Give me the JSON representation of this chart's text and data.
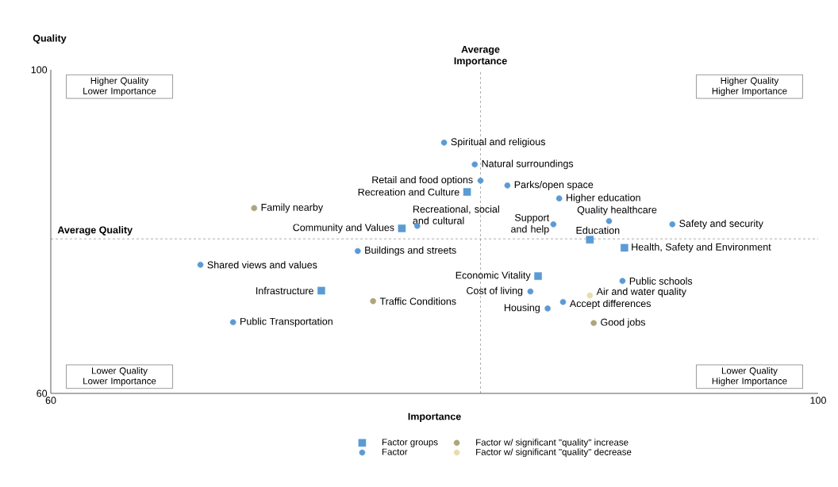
{
  "chart_data": {
    "type": "scatter",
    "xlabel": "Importance",
    "ylabel": "Quality",
    "xlim": [
      60,
      100
    ],
    "ylim": [
      60,
      100
    ],
    "xticks": [
      60,
      100
    ],
    "yticks": [
      60,
      100
    ],
    "legend": "bottom",
    "series": [
      {
        "name": "Factor groups",
        "color": "#5b9bd5",
        "marker": "square",
        "x": [
          81.7,
          78.3,
          88.1,
          89.9,
          85.4,
          74.1
        ],
        "values": [
          84.9,
          80.4,
          79.0,
          78.0,
          74.5,
          72.7
        ]
      },
      {
        "name": "Factor",
        "color": "#5b9bd5",
        "marker": "circle",
        "x": [
          80.5,
          82.1,
          82.4,
          83.8,
          86.5,
          79.1,
          86.2,
          89.1,
          92.4,
          76.0,
          67.8,
          89.8,
          85.0,
          86.7,
          85.9,
          69.5
        ],
        "values": [
          91.0,
          88.3,
          86.3,
          85.7,
          84.1,
          80.7,
          80.9,
          81.3,
          80.9,
          77.6,
          75.9,
          73.9,
          72.6,
          71.3,
          70.5,
          68.8
        ]
      },
      {
        "name": "Factor w/ significant \"quality\" increase",
        "color": "#aea57c",
        "marker": "circle",
        "x": [
          70.6,
          76.8,
          88.3
        ],
        "values": [
          82.9,
          71.4,
          68.7
        ]
      },
      {
        "name": "Factor w/ significant \"quality\" decrease",
        "color": "#e8dcae",
        "marker": "circle",
        "x": [
          88.1
        ],
        "values": [
          72.1
        ]
      }
    ],
    "ref_lines": [
      {
        "axis": "x",
        "value": 82.4,
        "label": "Average Importance",
        "color": "#333333",
        "line_style": "dashed"
      },
      {
        "axis": "y",
        "value": 79.1,
        "label": "Average Quality",
        "color": "#333333",
        "line_style": "dashed"
      }
    ],
    "annotations": [
      "Higher Quality Lower Importance",
      "Higher Quality Higher Importance",
      "Lower Quality Lower Importance",
      "Lower Quality Higher Importance",
      {
        "text": "Recreation and Culture",
        "x": 81.7,
        "y": 84.9
      },
      {
        "text": "Community and Values",
        "x": 78.3,
        "y": 80.4
      },
      {
        "text": "Education",
        "x": 88.1,
        "y": 79.0
      },
      {
        "text": "Health, Safety and Environment",
        "x": 89.9,
        "y": 78.0
      },
      {
        "text": "Economic Vitality",
        "x": 85.4,
        "y": 74.5
      },
      {
        "text": "Infrastructure",
        "x": 74.1,
        "y": 72.7
      },
      {
        "text": "Spiritual and religious",
        "x": 80.5,
        "y": 91.0
      },
      {
        "text": "Natural surroundings",
        "x": 82.1,
        "y": 88.3
      },
      {
        "text": "Retail and food options",
        "x": 82.4,
        "y": 86.3
      },
      {
        "text": "Parks/open space",
        "x": 83.8,
        "y": 85.7
      },
      {
        "text": "Higher education",
        "x": 86.5,
        "y": 84.1
      },
      {
        "text": "Recreational, social and cultural",
        "x": 79.1,
        "y": 80.7
      },
      {
        "text": "Support and help",
        "x": 86.2,
        "y": 80.9
      },
      {
        "text": "Quality healthcare",
        "x": 89.1,
        "y": 81.3
      },
      {
        "text": "Safety and security",
        "x": 92.4,
        "y": 80.9
      },
      {
        "text": "Buildings and streets",
        "x": 76.0,
        "y": 77.6
      },
      {
        "text": "Shared views and values",
        "x": 67.8,
        "y": 75.9
      },
      {
        "text": "Public schools",
        "x": 89.8,
        "y": 73.9
      },
      {
        "text": "Cost of living",
        "x": 85.0,
        "y": 72.6
      },
      {
        "text": "Accept differences",
        "x": 86.7,
        "y": 71.3
      },
      {
        "text": "Housing",
        "x": 85.9,
        "y": 70.5
      },
      {
        "text": "Public Transportation",
        "x": 69.5,
        "y": 68.8
      },
      {
        "text": "Family nearby",
        "x": 70.6,
        "y": 82.9
      },
      {
        "text": "Traffic Conditions",
        "x": 76.8,
        "y": 71.4
      },
      {
        "text": "Good jobs",
        "x": 88.3,
        "y": 68.7
      },
      {
        "text": "Air and water quality",
        "x": 88.1,
        "y": 72.1
      }
    ]
  }
}
